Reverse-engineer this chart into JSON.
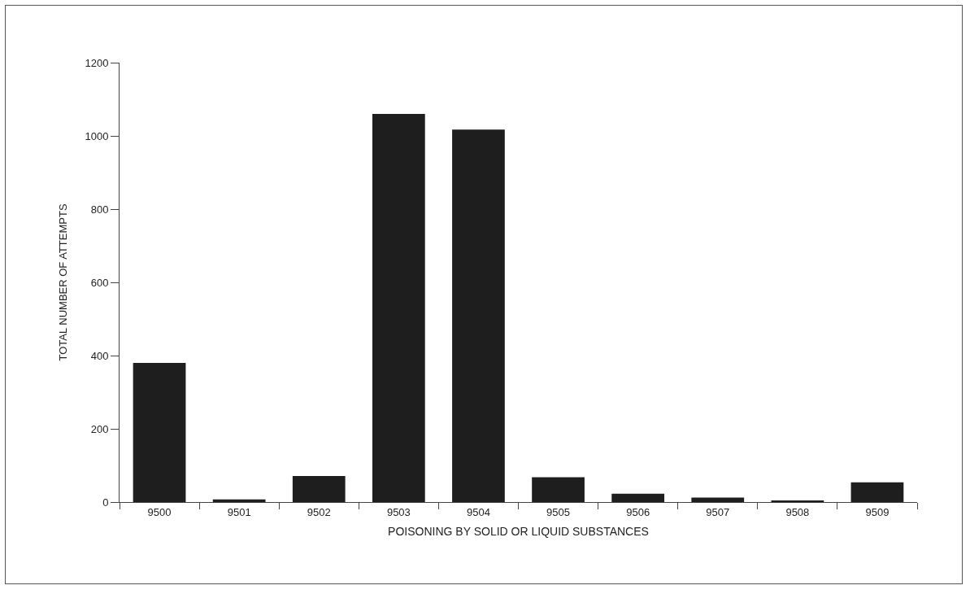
{
  "chart_data": {
    "type": "bar",
    "xlabel": "POISONING BY SOLID OR LIQUID SUBSTANCES",
    "ylabel": "TOTAL NUMBER OF ATTEMPTS",
    "categories": [
      "9500",
      "9501",
      "9502",
      "9503",
      "9504",
      "9505",
      "9506",
      "9507",
      "9508",
      "9509"
    ],
    "values": [
      380,
      7,
      71,
      1060,
      1017,
      68,
      23,
      12,
      3,
      54
    ],
    "color": "#1e1e1e",
    "ylim": [
      0,
      1200
    ],
    "yticks": [
      0,
      200,
      400,
      600,
      800,
      1000,
      1200
    ],
    "grid": false,
    "legend": false
  }
}
